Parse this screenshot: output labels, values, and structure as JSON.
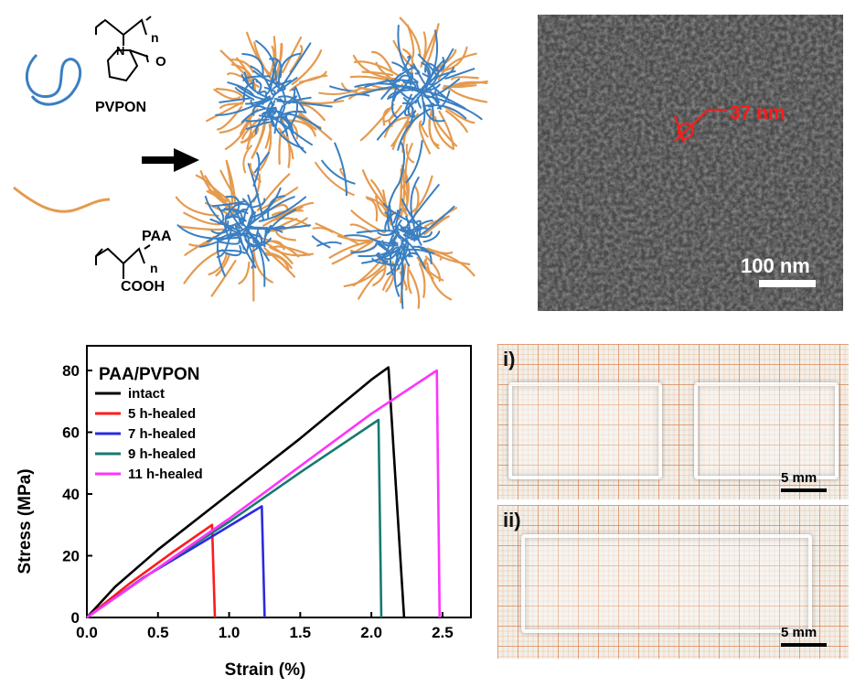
{
  "schematic": {
    "polymer_top": "PVPON",
    "polymer_bottom": "PAA",
    "formula_n": "n",
    "formula_oxygen": "O",
    "formula_nitrogen": "N",
    "formula_cooh": "COOH",
    "colors": {
      "pvpon": "#3a7fc1",
      "paa": "#e59a4e",
      "arrow": "#000000"
    }
  },
  "tem": {
    "particle_size": "37 nm",
    "scale_bar": "100 nm",
    "colors": {
      "annotation": "#ff1a1a",
      "background": "#4a4a4a"
    }
  },
  "photos": {
    "panel_i": "i)",
    "panel_ii": "ii)",
    "scale_i": "5 mm",
    "scale_ii": "5 mm"
  },
  "chart_data": {
    "type": "line",
    "title": "PAA/PVPON",
    "xlabel": "Strain (%)",
    "ylabel": "Stress (MPa)",
    "xlim": [
      0,
      2.7
    ],
    "ylim": [
      0,
      88
    ],
    "xticks": [
      "0.0",
      "0.5",
      "1.0",
      "1.5",
      "2.0",
      "2.5"
    ],
    "xtick_values": [
      0,
      0.5,
      1.0,
      1.5,
      2.0,
      2.5
    ],
    "yticks": [
      "0",
      "20",
      "40",
      "60",
      "80"
    ],
    "ytick_values": [
      0,
      20,
      40,
      60,
      80
    ],
    "grid": false,
    "legend_position": "top-left",
    "series": [
      {
        "name": "intact",
        "color": "#000000",
        "x": [
          0,
          0.2,
          0.5,
          1.0,
          1.5,
          2.0,
          2.12,
          2.23
        ],
        "y": [
          0,
          10,
          22,
          40,
          58,
          77,
          81,
          0
        ]
      },
      {
        "name": "5 h-healed",
        "color": "#ff1a1a",
        "x": [
          0,
          0.3,
          0.6,
          0.88,
          0.9
        ],
        "y": [
          0,
          11,
          21,
          30,
          0
        ]
      },
      {
        "name": "7 h-healed",
        "color": "#2a2ae0",
        "x": [
          0,
          0.4,
          0.8,
          1.23,
          1.25
        ],
        "y": [
          0,
          13,
          24,
          36,
          0
        ]
      },
      {
        "name": "9 h-healed",
        "color": "#167a70",
        "x": [
          0,
          0.5,
          1.0,
          1.5,
          2.05,
          2.07
        ],
        "y": [
          0,
          16,
          31,
          47,
          64,
          0
        ]
      },
      {
        "name": "11 h-healed",
        "color": "#ff33ff",
        "x": [
          0,
          0.5,
          1.0,
          1.5,
          2.0,
          2.46,
          2.48
        ],
        "y": [
          0,
          16,
          32,
          49,
          66,
          80,
          0
        ]
      }
    ]
  }
}
